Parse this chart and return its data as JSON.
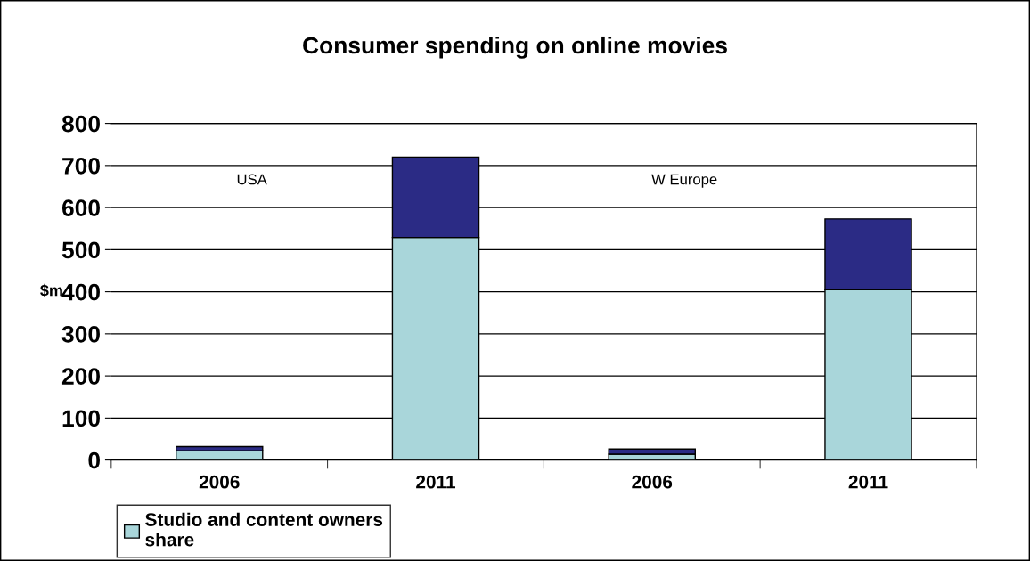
{
  "chart_data": {
    "type": "bar",
    "title": "Consumer spending on online movies",
    "ylabel": "$m",
    "categories": [
      "2006",
      "2011",
      "2006",
      "2011"
    ],
    "stacked": true,
    "series": [
      {
        "name": "Studio and content owners share",
        "color": "#a9d6da",
        "values": [
          22,
          529,
          14,
          405
        ]
      },
      {
        "color": "#2b2b85",
        "values": [
          10,
          191,
          12,
          168
        ]
      }
    ],
    "ylim": [
      0,
      800
    ],
    "yticks": [
      0,
      100,
      200,
      300,
      400,
      500,
      600,
      700,
      800
    ],
    "grid": "y",
    "legend": "bottom left",
    "annotations": [
      "USA",
      "W Europe"
    ]
  }
}
